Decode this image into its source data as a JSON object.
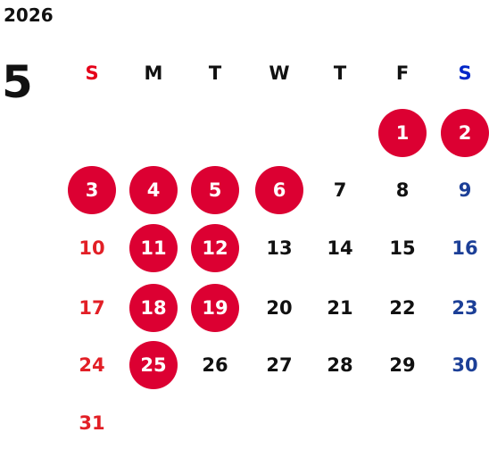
{
  "calendar": {
    "year": "2026",
    "month": "5",
    "weekdays": [
      "S",
      "M",
      "T",
      "W",
      "T",
      "F",
      "S"
    ],
    "weeks": [
      [
        "",
        "",
        "",
        "",
        "",
        "1",
        "2"
      ],
      [
        "3",
        "4",
        "5",
        "6",
        "7",
        "8",
        "9"
      ],
      [
        "10",
        "11",
        "12",
        "13",
        "14",
        "15",
        "16"
      ],
      [
        "17",
        "18",
        "19",
        "20",
        "21",
        "22",
        "23"
      ],
      [
        "24",
        "25",
        "26",
        "27",
        "28",
        "29",
        "30"
      ],
      [
        "31",
        "",
        "",
        "",
        "",
        "",
        ""
      ]
    ],
    "marked_days": [
      1,
      2,
      3,
      4,
      5,
      6,
      11,
      12,
      18,
      19,
      25
    ],
    "colors": {
      "sunday": "#e21f26",
      "saturday": "#1c3f97",
      "marked_fill": "#dc0032",
      "weekday_text": "#111111"
    }
  }
}
